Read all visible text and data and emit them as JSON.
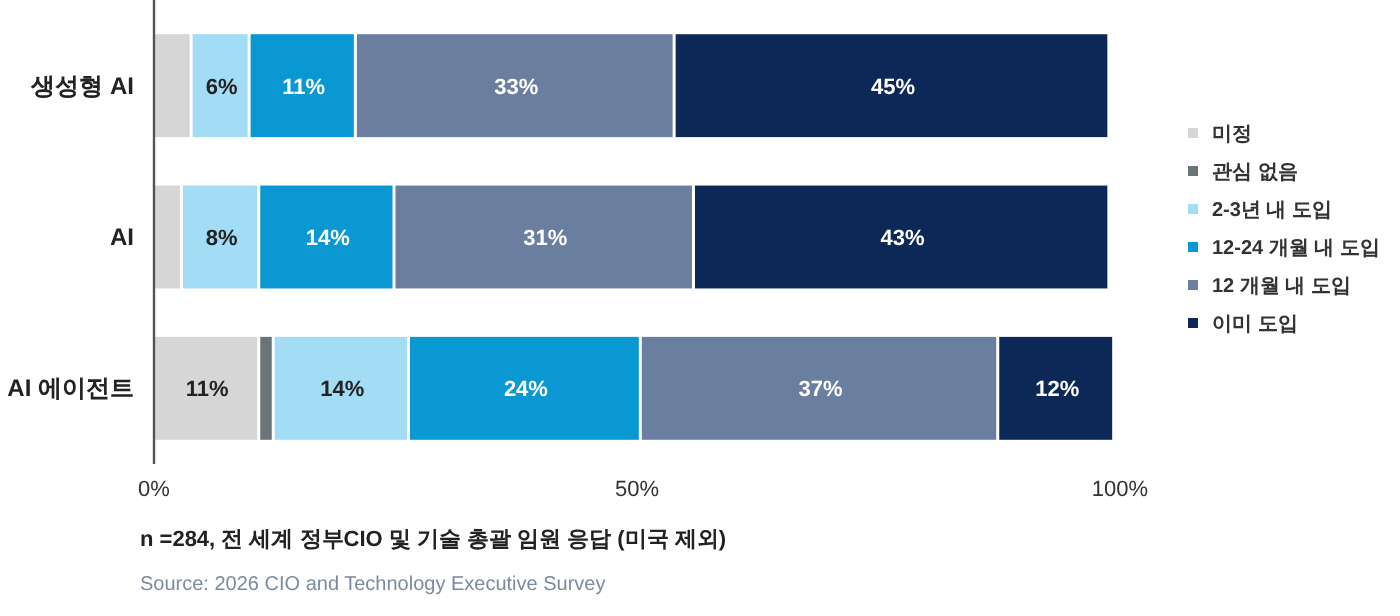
{
  "chart_data": {
    "type": "bar",
    "orientation": "horizontal",
    "stacked": true,
    "categories": [
      "생성형 AI",
      "AI",
      "AI 에이전트"
    ],
    "series": [
      {
        "name": "미정",
        "color": "#d6d6d6",
        "values": [
          4,
          3,
          11
        ],
        "value_labels": [
          null,
          null,
          "11%"
        ]
      },
      {
        "name": "관심 없음",
        "color": "#6b7476",
        "values": [
          null,
          null,
          1.5
        ],
        "value_labels": [
          null,
          null,
          null
        ]
      },
      {
        "name": "2-3년 내 도입",
        "color": "#a3dcf5",
        "values": [
          6,
          8,
          14
        ],
        "value_labels": [
          "6%",
          "8%",
          "14%"
        ]
      },
      {
        "name": "12-24 개월 내 도입",
        "color": "#0a98d2",
        "values": [
          11,
          14,
          24
        ],
        "value_labels": [
          "11%",
          "14%",
          "24%"
        ]
      },
      {
        "name": "12 개월 내 도입",
        "color": "#6a7e9f",
        "values": [
          33,
          31,
          37
        ],
        "value_labels": [
          "33%",
          "31%",
          "37%"
        ]
      },
      {
        "name": "이미 도입",
        "color": "#0c2856",
        "values": [
          45,
          43,
          12
        ],
        "value_labels": [
          "45%",
          "43%",
          "12%"
        ]
      }
    ],
    "xlim": [
      0,
      100
    ],
    "xticks": [
      {
        "value": 0,
        "label": "0%"
      },
      {
        "value": 50,
        "label": "50%"
      },
      {
        "value": 100,
        "label": "100%"
      }
    ],
    "grid": false,
    "legend": "right",
    "annotations": [
      "n =284, 전 세계 정부CIO 및 기술 총괄 임원 응답 (미국 제외)",
      "Source: 2026 CIO and Technology Executive Survey"
    ]
  }
}
